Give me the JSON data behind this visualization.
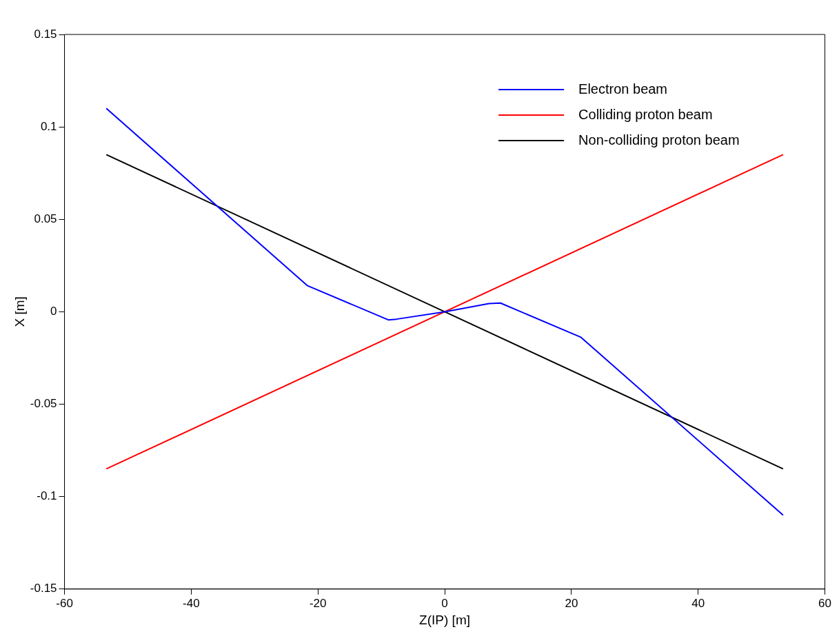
{
  "chart_data": {
    "type": "line",
    "xlabel": "Z(IP) [m]",
    "ylabel": "X [m]",
    "xlim": [
      -60,
      60
    ],
    "xticks": [
      -60,
      -40,
      -20,
      0,
      20,
      40,
      60
    ],
    "ylim": [
      -0.15,
      0.15
    ],
    "yticks": [
      -0.15,
      -0.1,
      -0.05,
      0,
      0.05,
      0.1,
      0.15
    ],
    "grid": false,
    "legend": "top right",
    "marker": "none",
    "line_style": "solid",
    "series": [
      {
        "name": "Electron beam",
        "color": "#0000ff",
        "x": [
          -53.4,
          -21.7,
          -8.9,
          -7.6,
          0,
          7.0,
          8.8,
          21.5,
          53.4
        ],
        "values": [
          0.11,
          0.0142,
          -0.0044,
          -0.004,
          0,
          0.0044,
          0.0047,
          -0.0138,
          -0.11
        ]
      },
      {
        "name": "Colliding proton beam",
        "color": "#ff0000",
        "x": [
          -53.4,
          53.4
        ],
        "values": [
          -0.085,
          0.085
        ]
      },
      {
        "name": "Non-colliding proton beam",
        "color": "#000000",
        "x": [
          -53.4,
          53.4
        ],
        "values": [
          0.085,
          -0.085
        ]
      }
    ]
  }
}
